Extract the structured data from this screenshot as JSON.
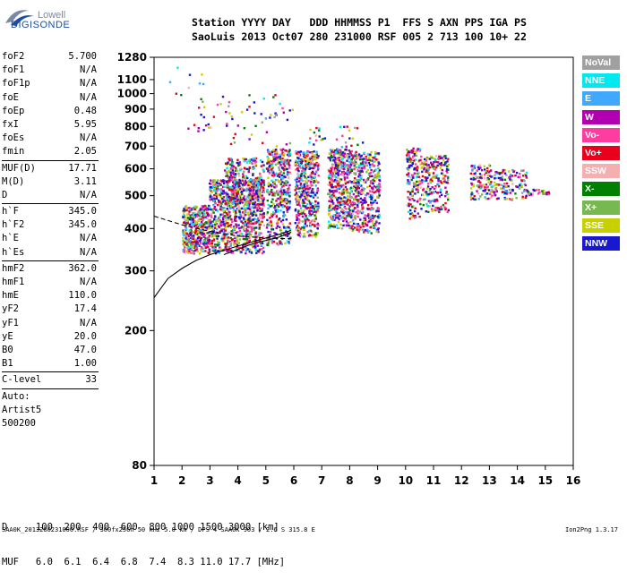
{
  "logo": {
    "line1": "Lowell",
    "line2": "DIGISONDE"
  },
  "header": {
    "line1": "Station YYYY DAY   DDD HHMMSS P1  FFS S AXN PPS IGA PS",
    "line2": "SaoLuis 2013 Oct07 280 231000 RSF 005 2 713 100 10+ 22"
  },
  "params": [
    {
      "type": "kv",
      "k": "foF2",
      "v": "5.700"
    },
    {
      "type": "kv",
      "k": "foF1",
      "v": "N/A"
    },
    {
      "type": "kv",
      "k": "foF1p",
      "v": "N/A"
    },
    {
      "type": "kv",
      "k": "foE",
      "v": "N/A"
    },
    {
      "type": "kv",
      "k": "foEp",
      "v": "0.48"
    },
    {
      "type": "kv",
      "k": "fxI",
      "v": "5.95"
    },
    {
      "type": "kv",
      "k": "foEs",
      "v": "N/A"
    },
    {
      "type": "kv",
      "k": "fmin",
      "v": "2.05"
    },
    {
      "type": "sep"
    },
    {
      "type": "kv",
      "k": "MUF(D)",
      "v": "17.71"
    },
    {
      "type": "kv",
      "k": "M(D)",
      "v": "3.11"
    },
    {
      "type": "kv",
      "k": "D",
      "v": "N/A"
    },
    {
      "type": "sep"
    },
    {
      "type": "kv",
      "k": "h`F",
      "v": "345.0"
    },
    {
      "type": "kv",
      "k": "h`F2",
      "v": "345.0"
    },
    {
      "type": "kv",
      "k": "h`E",
      "v": "N/A"
    },
    {
      "type": "kv",
      "k": "h`Es",
      "v": "N/A"
    },
    {
      "type": "sep"
    },
    {
      "type": "kv",
      "k": "hmF2",
      "v": "362.0"
    },
    {
      "type": "kv",
      "k": "hmF1",
      "v": "N/A"
    },
    {
      "type": "kv",
      "k": "hmE",
      "v": "110.0"
    },
    {
      "type": "kv",
      "k": "yF2",
      "v": "17.4"
    },
    {
      "type": "kv",
      "k": "yF1",
      "v": "N/A"
    },
    {
      "type": "kv",
      "k": "yE",
      "v": "20.0"
    },
    {
      "type": "kv",
      "k": "B0",
      "v": "47.0"
    },
    {
      "type": "kv",
      "k": "B1",
      "v": "1.00"
    },
    {
      "type": "sep"
    },
    {
      "type": "kv",
      "k": "C-level",
      "v": "33"
    },
    {
      "type": "sep"
    },
    {
      "type": "txt",
      "t": "Auto:"
    },
    {
      "type": "txt",
      "t": "Artist5"
    },
    {
      "type": "txt",
      "t": "500200"
    }
  ],
  "bottom": {
    "line1": "D     100  200  400  600  800 1000 1500 3000 [km]",
    "line2": "MUF   6.0  6.1  6.4  6.8  7.4  8.3 11.0 17.7 [MHz]"
  },
  "footer": "SAA0K_2013280231000.RSF / 300fx256h 50 kHz 5.0 km / DPS-4 SAA0K 903 / 2.6 S 315.8 E",
  "version": "Ion2Png 1.3.17",
  "legend": [
    {
      "label": "NoVal",
      "color": "#a0a0a0"
    },
    {
      "label": "NNE",
      "color": "#00e8f0"
    },
    {
      "label": "E",
      "color": "#40a8ff"
    },
    {
      "label": "W",
      "color": "#b000b0"
    },
    {
      "label": "Vo-",
      "color": "#ff3ca0"
    },
    {
      "label": "Vo+",
      "color": "#e8001c"
    },
    {
      "label": "SSW",
      "color": "#f4b0b0"
    },
    {
      "label": "X-",
      "color": "#008000"
    },
    {
      "label": "X+",
      "color": "#78b850"
    },
    {
      "label": "SSE",
      "color": "#c8d000"
    },
    {
      "label": "NNW",
      "color": "#1818d0"
    }
  ],
  "chart_data": {
    "type": "scatter",
    "xlim": [
      1,
      16
    ],
    "ylim": [
      80,
      1280
    ],
    "x_ticks": [
      1,
      2,
      3,
      4,
      5,
      6,
      7,
      8,
      9,
      10,
      11,
      12,
      13,
      14,
      15,
      16
    ],
    "y_ticks": [
      80,
      200,
      300,
      400,
      500,
      600,
      700,
      800,
      900,
      1000,
      1100,
      1280
    ],
    "scale": "log",
    "grid": false,
    "legend_placement": "right",
    "clusters": [
      {
        "x": [
          2.0,
          2.95
        ],
        "y": [
          340,
          470
        ],
        "n": 420
      },
      {
        "x": [
          2.95,
          4.9
        ],
        "y": [
          340,
          560
        ],
        "n": 900
      },
      {
        "x": [
          3.5,
          4.9
        ],
        "y": [
          470,
          650
        ],
        "n": 260
      },
      {
        "x": [
          5.0,
          5.85
        ],
        "y": [
          360,
          690
        ],
        "n": 420
      },
      {
        "x": [
          6.0,
          6.85
        ],
        "y": [
          380,
          680
        ],
        "n": 440
      },
      {
        "x": [
          7.2,
          8.05
        ],
        "y": [
          400,
          690
        ],
        "n": 460
      },
      {
        "x": [
          8.05,
          9.05
        ],
        "y": [
          390,
          680
        ],
        "n": 420
      },
      {
        "x": [
          10.0,
          10.5
        ],
        "y": [
          430,
          700
        ],
        "n": 160
      },
      {
        "x": [
          10.5,
          11.5
        ],
        "y": [
          450,
          660
        ],
        "n": 220
      },
      {
        "x": [
          12.3,
          13.0
        ],
        "y": [
          490,
          620
        ],
        "n": 100
      },
      {
        "x": [
          13.0,
          14.3
        ],
        "y": [
          490,
          600
        ],
        "n": 140
      },
      {
        "x": [
          14.3,
          15.1
        ],
        "y": [
          505,
          525
        ],
        "n": 30
      },
      {
        "x": [
          2.5,
          6.0
        ],
        "y": [
          700,
          1000
        ],
        "n": 60
      },
      {
        "x": [
          6.5,
          8.5
        ],
        "y": [
          700,
          820
        ],
        "n": 30
      },
      {
        "x": [
          1.5,
          3.0
        ],
        "y": [
          790,
          1220
        ],
        "n": 14
      }
    ],
    "model_curves": [
      {
        "style": "solid",
        "x": [
          1.0,
          1.5,
          2.0,
          2.5,
          3.0,
          3.5,
          4.0,
          4.5,
          5.0,
          5.5,
          5.9
        ],
        "y": [
          250,
          285,
          305,
          322,
          335,
          345,
          355,
          365,
          375,
          385,
          395
        ]
      },
      {
        "style": "dashed",
        "x": [
          1.0,
          2.0,
          3.0,
          4.0,
          5.0,
          5.9
        ],
        "y": [
          435,
          410,
          392,
          380,
          375,
          373
        ]
      },
      {
        "style": "solid",
        "x": [
          3.5,
          4.5,
          5.5,
          5.9
        ],
        "y": [
          335,
          360,
          378,
          390
        ]
      }
    ]
  }
}
